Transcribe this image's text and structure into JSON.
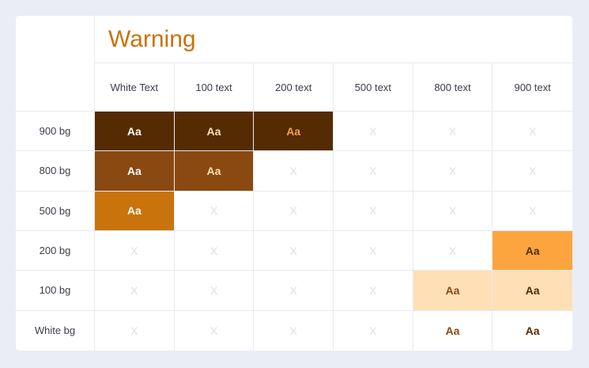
{
  "title": "Warning",
  "columns": [
    "White Text",
    "100 text",
    "200 text",
    "500 text",
    "800 text",
    "900 text"
  ],
  "rows": [
    "900 bg",
    "800 bg",
    "500 bg",
    "200 bg",
    "100 bg",
    "White bg"
  ],
  "sample_text": "Aa",
  "empty_mark": "X",
  "colors": {
    "accent": "#c8730b",
    "w900": "#542b02",
    "w800": "#8a4910",
    "w500": "#c8730b",
    "w200": "#fca53e",
    "w100": "#ffdfb6",
    "white": "#ffffff",
    "t200": "#f5a04f"
  },
  "matrix": [
    [
      {
        "bg": "#542b02",
        "fg": "#ffffff"
      },
      {
        "bg": "#542b02",
        "fg": "#ffdfb6"
      },
      {
        "bg": "#542b02",
        "fg": "#f5a04f"
      },
      null,
      null,
      null
    ],
    [
      {
        "bg": "#8a4910",
        "fg": "#ffffff"
      },
      {
        "bg": "#8a4910",
        "fg": "#ffdfb6"
      },
      null,
      null,
      null,
      null
    ],
    [
      {
        "bg": "#c8730b",
        "fg": "#ffffff"
      },
      null,
      null,
      null,
      null,
      null
    ],
    [
      null,
      null,
      null,
      null,
      null,
      {
        "bg": "#fca53e",
        "fg": "#542b02"
      }
    ],
    [
      null,
      null,
      null,
      null,
      {
        "bg": "#ffdfb6",
        "fg": "#8a4910"
      },
      {
        "bg": "#ffdfb6",
        "fg": "#542b02"
      }
    ],
    [
      null,
      null,
      null,
      null,
      {
        "bg": "#ffffff",
        "fg": "#8a4910"
      },
      {
        "bg": "#ffffff",
        "fg": "#542b02"
      }
    ]
  ]
}
